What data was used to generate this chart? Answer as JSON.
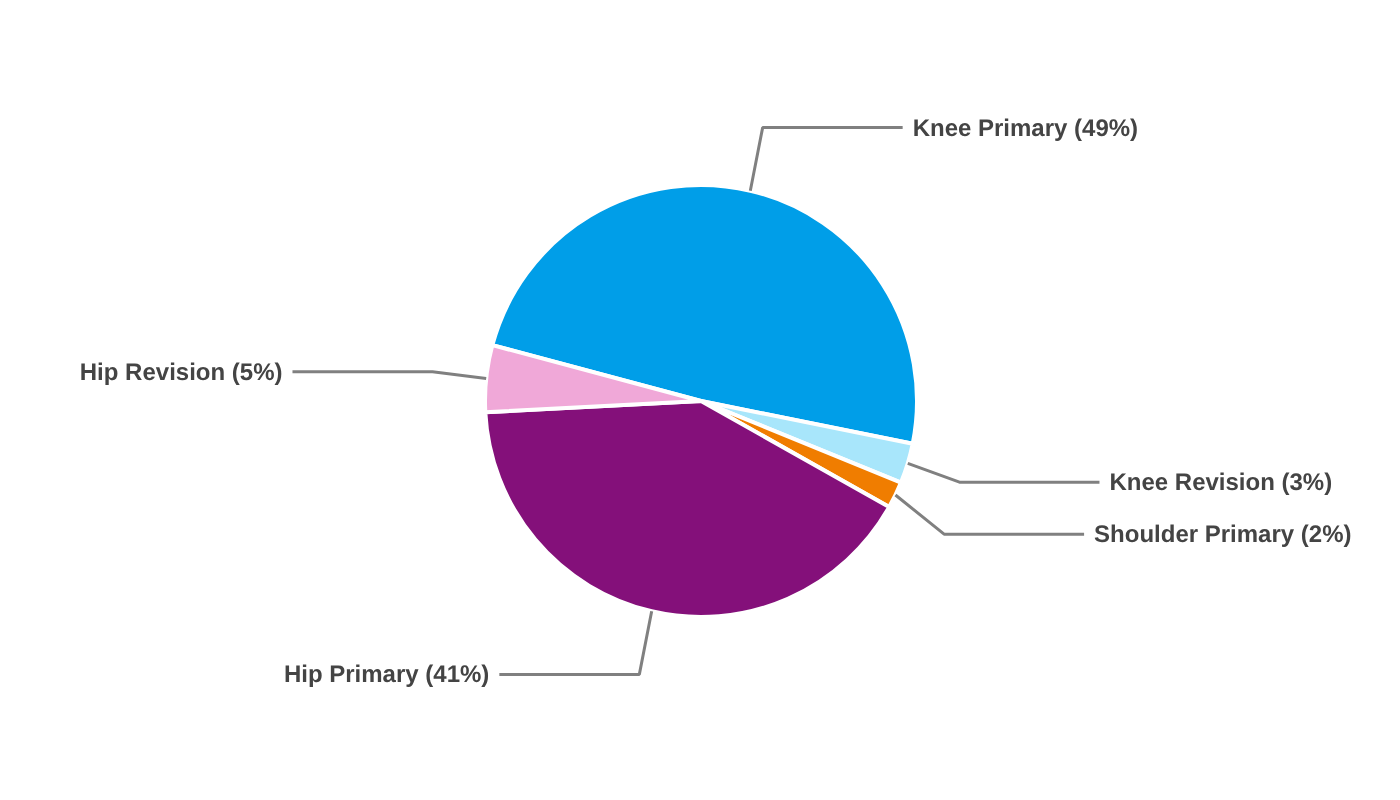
{
  "chart_data": {
    "type": "pie",
    "categories": [
      "Knee Primary (49%)",
      "Knee Revision (3%)",
      "Shoulder Primary (2%)",
      "Hip Primary (41%)",
      "Hip Revision (5%)"
    ],
    "values": [
      49,
      3,
      2,
      41,
      5
    ],
    "colors": [
      "#009ee8",
      "#a8e6fb",
      "#f07d00",
      "#84107a",
      "#f0a8d8"
    ]
  }
}
